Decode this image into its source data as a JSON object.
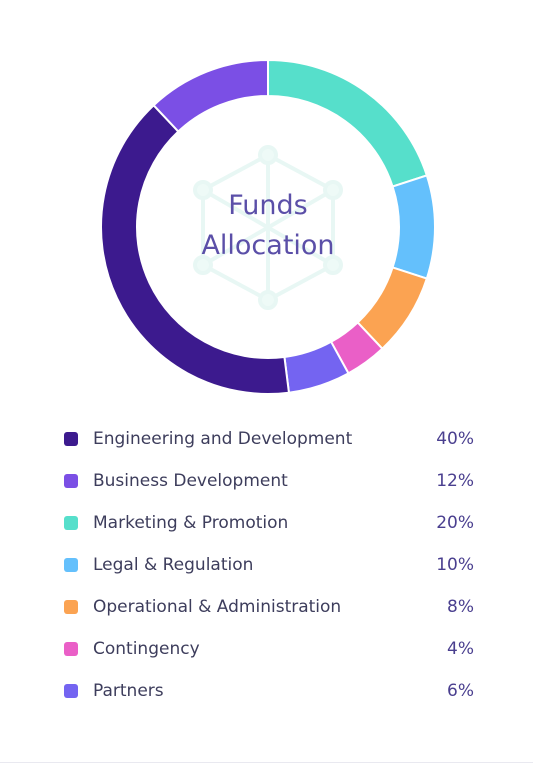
{
  "chart_data": {
    "type": "pie",
    "title_line1": "Funds",
    "title_line2": "Allocation",
    "startAngleDeg": 0,
    "series": [
      {
        "name": "Engineering and Development",
        "value": 40,
        "label": "40%",
        "color": "#3c1a8e"
      },
      {
        "name": "Business Development",
        "value": 12,
        "label": "12%",
        "color": "#7b4fe5"
      },
      {
        "name": "Marketing & Promotion",
        "value": 20,
        "label": "20%",
        "color": "#56dfcb"
      },
      {
        "name": "Legal & Regulation",
        "value": 10,
        "label": "10%",
        "color": "#64c0fc"
      },
      {
        "name": "Operational & Administration",
        "value": 8,
        "label": "8%",
        "color": "#fba352"
      },
      {
        "name": "Contingency",
        "value": 4,
        "label": "4%",
        "color": "#ea5fc7"
      },
      {
        "name": "Partners",
        "value": 6,
        "label": "6%",
        "color": "#7464f1"
      }
    ],
    "drawOrder": [
      "Marketing & Promotion",
      "Legal & Regulation",
      "Operational & Administration",
      "Contingency",
      "Partners",
      "Engineering and Development",
      "Business Development"
    ]
  }
}
